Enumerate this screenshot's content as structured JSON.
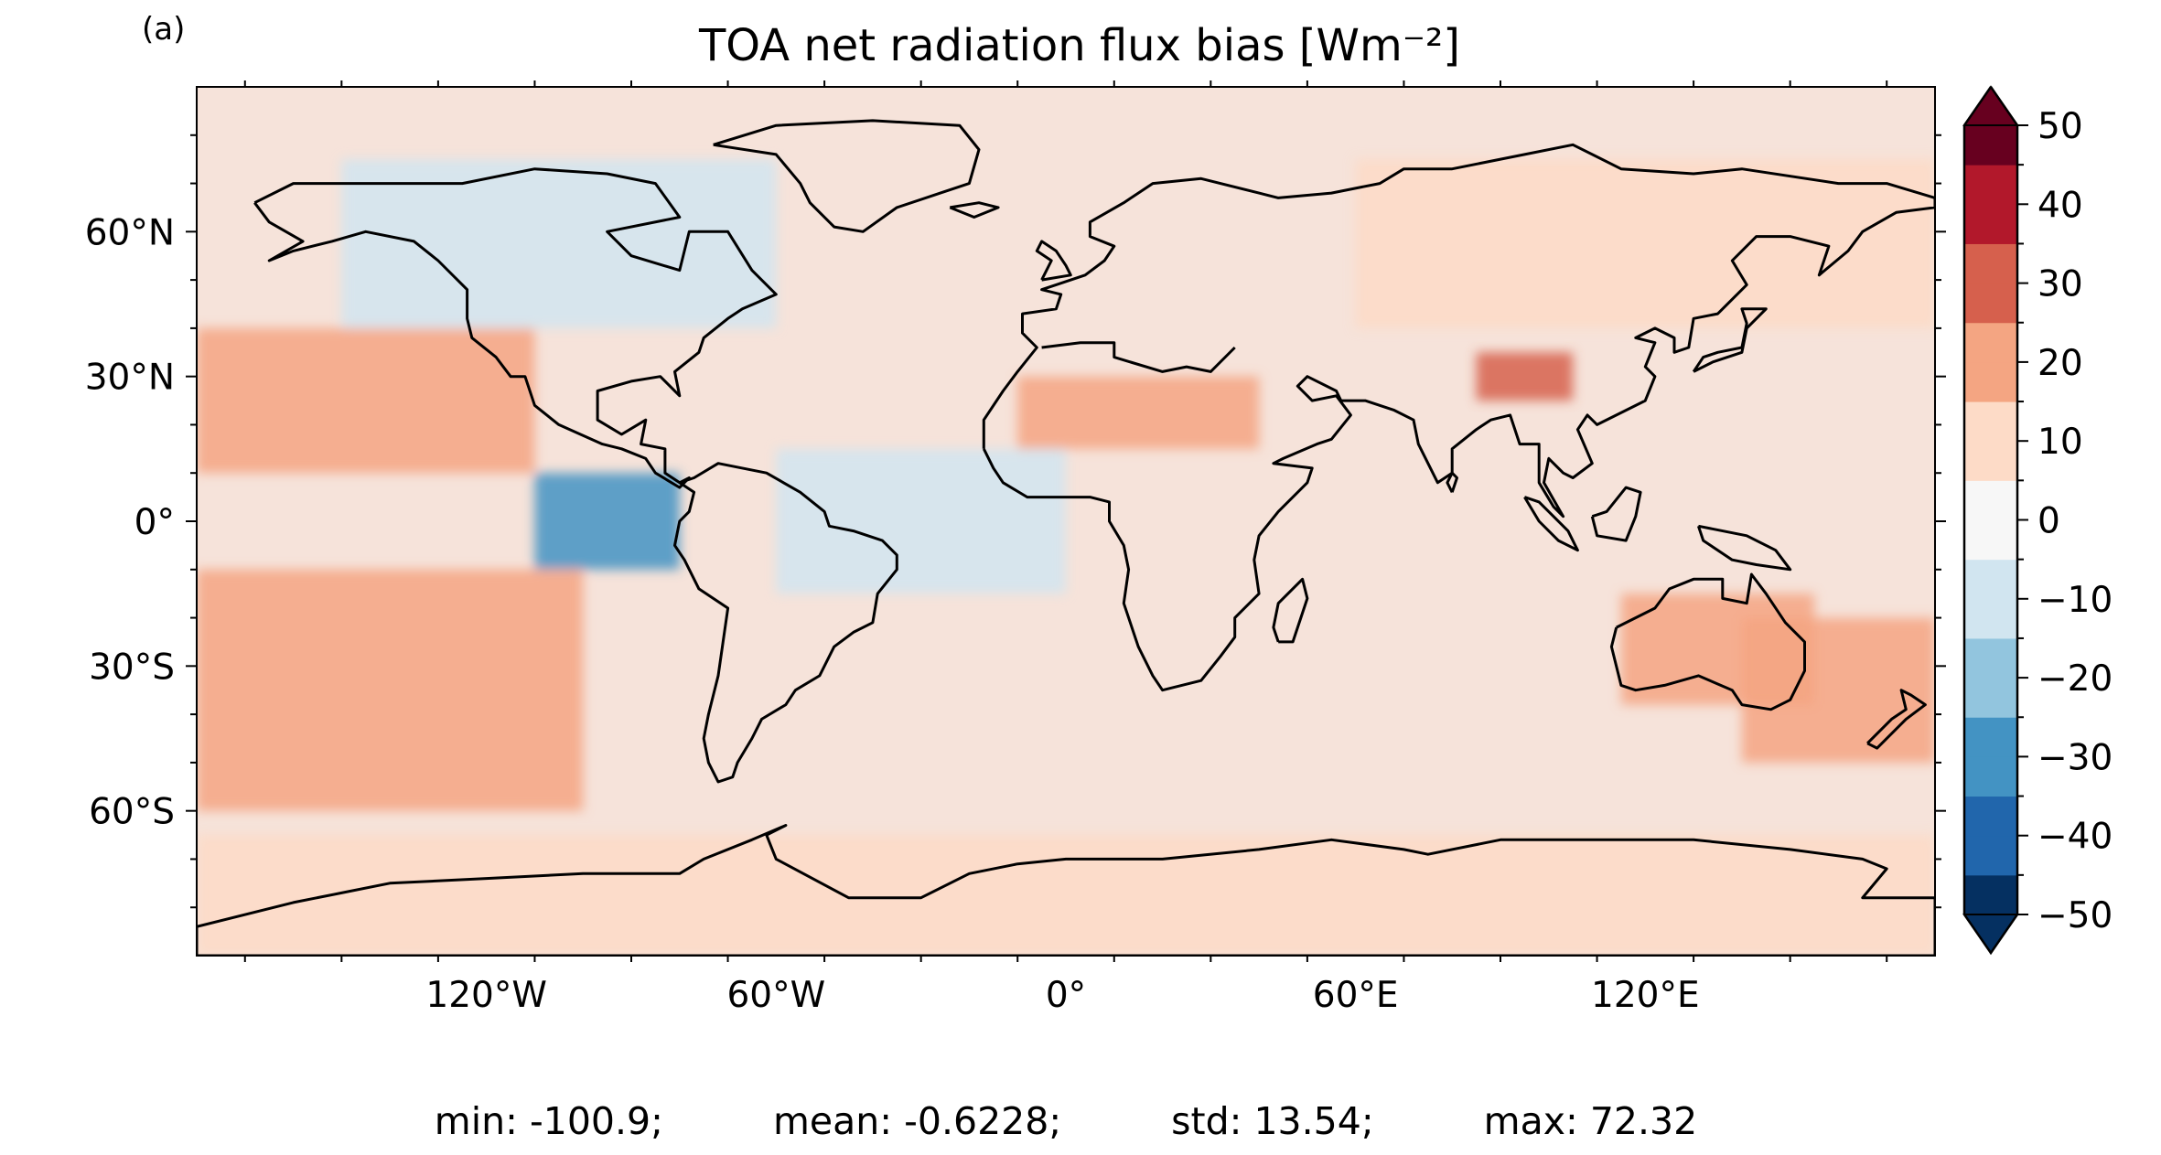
{
  "panel_label": "(a)",
  "title": "TOA net radiation flux bias",
  "title_units": "[Wm⁻²]",
  "map": {
    "projection": "plate-carree",
    "lon_range": [
      -180,
      180
    ],
    "lat_range": [
      -90,
      90
    ],
    "xticks": [
      {
        "value": -120,
        "label": "120°W"
      },
      {
        "value": -60,
        "label": "60°W"
      },
      {
        "value": 0,
        "label": "0°"
      },
      {
        "value": 60,
        "label": "60°E"
      },
      {
        "value": 120,
        "label": "120°E"
      }
    ],
    "yticks": [
      {
        "value": 60,
        "label": "60°N"
      },
      {
        "value": 30,
        "label": "30°N"
      },
      {
        "value": 0,
        "label": "0°"
      },
      {
        "value": -30,
        "label": "30°S"
      },
      {
        "value": -60,
        "label": "60°S"
      }
    ],
    "coastlines": true,
    "colormap": "RdBu_r",
    "field_description_regions": [
      {
        "lon": [
          -180,
          -100
        ],
        "lat": [
          -60,
          -10
        ],
        "value": 18
      },
      {
        "lon": [
          -180,
          -110
        ],
        "lat": [
          10,
          40
        ],
        "value": 15
      },
      {
        "lon": [
          -110,
          -80
        ],
        "lat": [
          -10,
          10
        ],
        "value": -30
      },
      {
        "lon": [
          -60,
          0
        ],
        "lat": [
          -15,
          15
        ],
        "value": -15
      },
      {
        "lon": [
          -10,
          40
        ],
        "lat": [
          15,
          30
        ],
        "value": 20
      },
      {
        "lon": [
          115,
          155
        ],
        "lat": [
          -38,
          -15
        ],
        "value": 22
      },
      {
        "lon": [
          140,
          180
        ],
        "lat": [
          -50,
          -20
        ],
        "value": 20
      },
      {
        "lon": [
          -180,
          180
        ],
        "lat": [
          -90,
          -65
        ],
        "value": 10
      },
      {
        "lon": [
          -150,
          -60
        ],
        "lat": [
          40,
          75
        ],
        "value": -8
      },
      {
        "lon": [
          60,
          180
        ],
        "lat": [
          40,
          75
        ],
        "value": 6
      },
      {
        "lon": [
          85,
          105
        ],
        "lat": [
          25,
          35
        ],
        "value": 30
      }
    ]
  },
  "colorbar": {
    "vmin": -50,
    "vmax": 50,
    "step": 5,
    "extend": "both",
    "ticks": [
      {
        "value": 50,
        "label": "50"
      },
      {
        "value": 40,
        "label": "40"
      },
      {
        "value": 30,
        "label": "30"
      },
      {
        "value": 20,
        "label": "20"
      },
      {
        "value": 10,
        "label": "10"
      },
      {
        "value": 0,
        "label": "0"
      },
      {
        "value": -10,
        "label": "−10"
      },
      {
        "value": -20,
        "label": "−20"
      },
      {
        "value": -30,
        "label": "−30"
      },
      {
        "value": -40,
        "label": "−40"
      },
      {
        "value": -50,
        "label": "−50"
      }
    ],
    "colors": [
      "#053061",
      "#2166ac",
      "#4393c3",
      "#92c5de",
      "#d1e5f0",
      "#f7f7f7",
      "#fddbc7",
      "#f4a582",
      "#d6604d",
      "#b2182b",
      "#67001f"
    ]
  },
  "stats": {
    "min": "min: -100.9;",
    "mean": "mean: -0.6228;",
    "std": "std: 13.54;",
    "max": "max: 72.32"
  }
}
